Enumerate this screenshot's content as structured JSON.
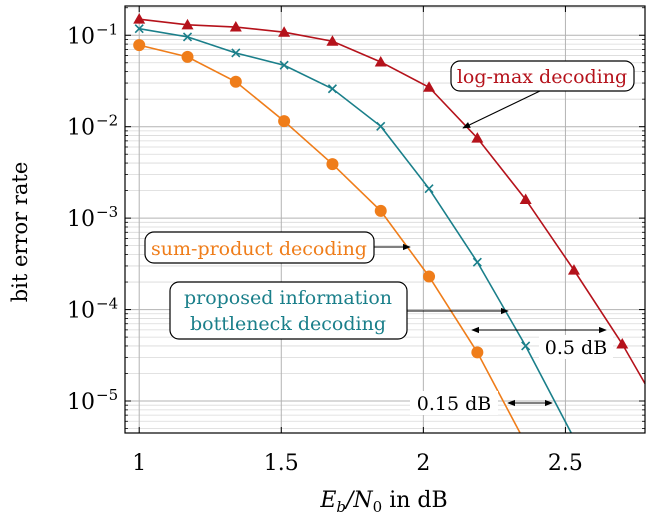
{
  "chart_data": {
    "type": "line",
    "xlabel_main": "E",
    "xlabel_sub": "b",
    "xlabel_rest": "/N",
    "xlabel_sub2": "0",
    "xlabel_unit": " in dB",
    "ylabel": "bit error rate",
    "xlim": [
      0.95,
      2.78
    ],
    "ylim_log10": [
      -5.35,
      -0.68
    ],
    "yscale": "log",
    "grid": true,
    "x_ticks": [
      {
        "value": 1,
        "label": "1"
      },
      {
        "value": 1.5,
        "label": "1.5"
      },
      {
        "value": 2,
        "label": "2"
      },
      {
        "value": 2.5,
        "label": "2.5"
      }
    ],
    "y_ticks": [
      {
        "exp": -1,
        "base": "10",
        "sup": "−1"
      },
      {
        "exp": -2,
        "base": "10",
        "sup": "−2"
      },
      {
        "exp": -3,
        "base": "10",
        "sup": "−3"
      },
      {
        "exp": -4,
        "base": "10",
        "sup": "−4"
      },
      {
        "exp": -5,
        "base": "10",
        "sup": "−5"
      }
    ],
    "series": [
      {
        "key": "logmax",
        "color": "#b5121b",
        "marker": "triangle",
        "x": [
          1.0,
          1.17,
          1.34,
          1.51,
          1.68,
          1.85,
          2.02,
          2.19,
          2.36,
          2.53,
          2.7
        ],
        "y": [
          0.15,
          0.13,
          0.123,
          0.108,
          0.086,
          0.051,
          0.027,
          0.0075,
          0.0016,
          0.00027,
          4.2e-05
        ],
        "tail": [
          2.78,
          1.55e-05
        ]
      },
      {
        "key": "ib",
        "color": "#1a7f8a",
        "marker": "x",
        "x": [
          1.0,
          1.17,
          1.34,
          1.51,
          1.68,
          1.85,
          2.02,
          2.19,
          2.36
        ],
        "y": [
          0.118,
          0.096,
          0.064,
          0.047,
          0.026,
          0.0101,
          0.0021,
          0.00033,
          4e-05
        ],
        "tail": [
          2.52,
          4.5e-06
        ]
      },
      {
        "key": "sp",
        "color": "#ef7d1a",
        "marker": "circle",
        "x": [
          1.0,
          1.17,
          1.34,
          1.51,
          1.68,
          1.85,
          2.02,
          2.19
        ],
        "y": [
          0.078,
          0.058,
          0.031,
          0.0115,
          0.0039,
          0.0012,
          0.00023,
          3.4e-05
        ],
        "tail": [
          2.34,
          4.5e-06
        ]
      }
    ],
    "annotations": {
      "logmax_label": "log-max decoding",
      "sp_label": "sum-product decoding",
      "ib_label_line1": "proposed information",
      "ib_label_line2": "bottleneck decoding",
      "gap_large": "0.5 dB",
      "gap_small": "0.15 dB"
    }
  }
}
